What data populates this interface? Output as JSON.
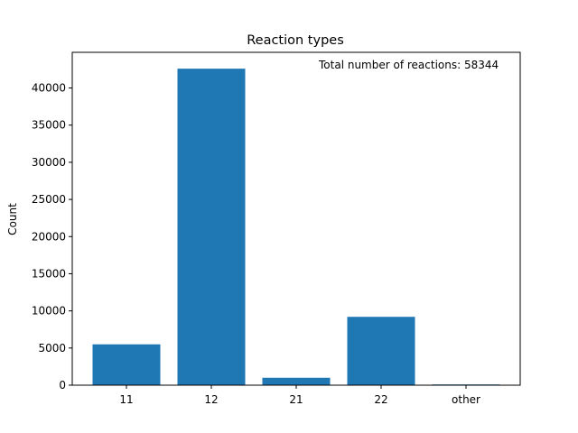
{
  "chart_data": {
    "type": "bar",
    "title": "Reaction types",
    "xlabel": "",
    "ylabel": "Count",
    "categories": [
      "11",
      "12",
      "21",
      "22",
      "other"
    ],
    "values": [
      5500,
      42600,
      1000,
      9200,
      100
    ],
    "ylim": [
      0,
      44800
    ],
    "yticks": [
      0,
      5000,
      10000,
      15000,
      20000,
      25000,
      30000,
      35000,
      40000
    ],
    "annotation": "Total number of reactions: 58344",
    "bar_color": "#1f77b4",
    "grid": false,
    "legend": "none"
  }
}
